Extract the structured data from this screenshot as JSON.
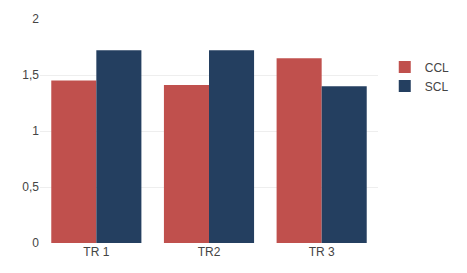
{
  "chart_data": {
    "type": "bar",
    "categories": [
      "TR 1",
      "TR2",
      "TR 3"
    ],
    "series": [
      {
        "name": "CCL",
        "color": "#C0504D",
        "values": [
          1.45,
          1.41,
          1.65
        ]
      },
      {
        "name": "SCL",
        "color": "#243F60",
        "values": [
          1.72,
          1.72,
          1.4
        ]
      }
    ],
    "ylim": [
      0,
      2.0
    ],
    "yticks": [
      0,
      {
        "value": 0.5,
        "label": "0,5"
      },
      1,
      {
        "value": 1.5,
        "label": "1,5"
      },
      2
    ],
    "grid": true,
    "legend": "right"
  }
}
